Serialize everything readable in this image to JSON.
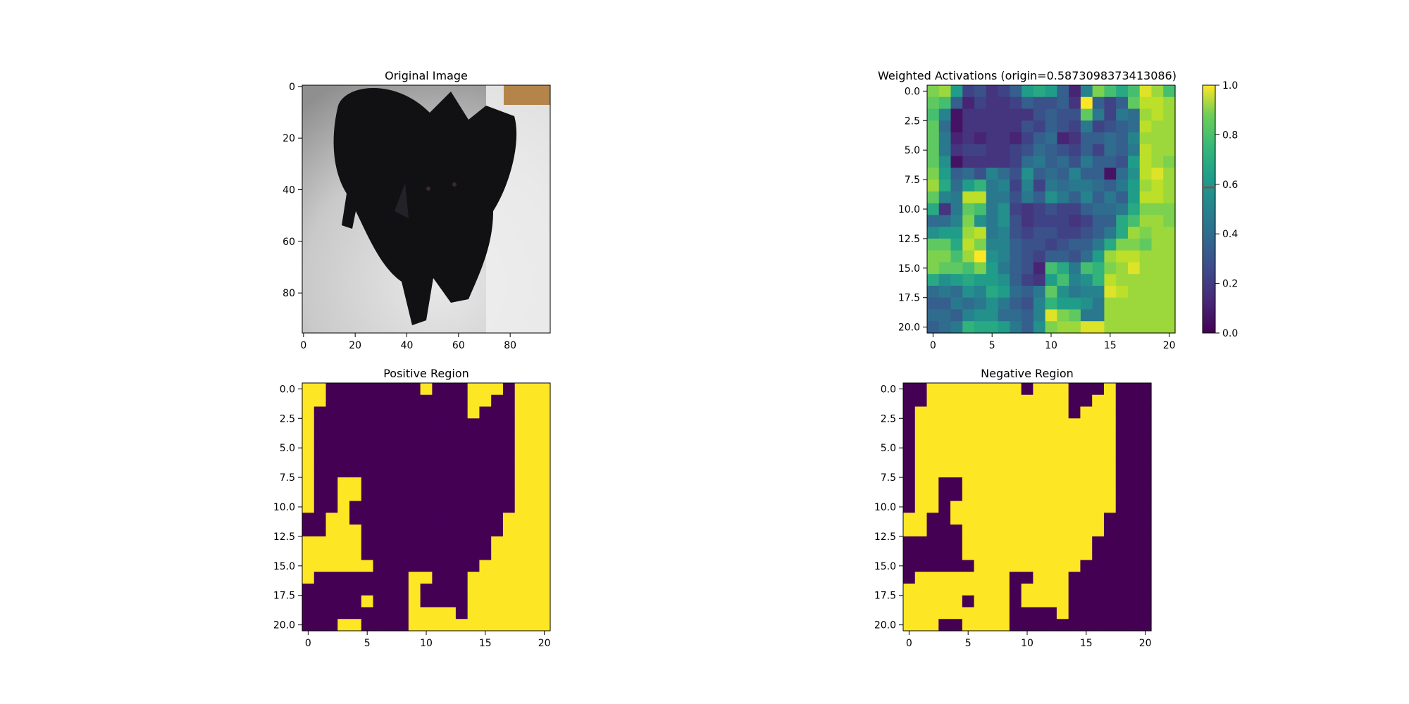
{
  "figure": {
    "panels": [
      {
        "id": "original",
        "title": "Original Image",
        "type": "image",
        "image_content": "black cat on light carpet",
        "xticks": [
          "0",
          "20",
          "40",
          "60",
          "80"
        ],
        "yticks": [
          "0",
          "20",
          "40",
          "60",
          "80"
        ],
        "xlim": [
          -0.5,
          95.5
        ],
        "ylim": [
          -0.5,
          95.5
        ],
        "xtick_values": [
          0,
          20,
          40,
          60,
          80
        ],
        "ytick_values": [
          0,
          20,
          40,
          60,
          80
        ]
      },
      {
        "id": "weighted",
        "title": "Weighted Activations (origin=0.5873098373413086)",
        "type": "heatmap",
        "colormap": "viridis",
        "xticks": [
          "0",
          "5",
          "10",
          "15",
          "20"
        ],
        "yticks": [
          "0.0",
          "2.5",
          "5.0",
          "7.5",
          "10.0",
          "12.5",
          "15.0",
          "17.5",
          "20.0"
        ],
        "colorbar": {
          "ticks": [
            "0.0",
            "0.2",
            "0.4",
            "0.6",
            "0.8",
            "1.0"
          ],
          "tick_values": [
            0,
            0.2,
            0.4,
            0.6,
            0.8,
            1.0
          ],
          "range": [
            0,
            1
          ],
          "marker_value": 0.5873098373413086,
          "marker_color": "#d62728"
        }
      },
      {
        "id": "positive",
        "title": "Positive Region",
        "type": "heatmap",
        "colormap": "binary-viridis",
        "xticks": [
          "0",
          "5",
          "10",
          "15",
          "20"
        ],
        "yticks": [
          "0.0",
          "2.5",
          "5.0",
          "7.5",
          "10.0",
          "12.5",
          "15.0",
          "17.5",
          "20.0"
        ]
      },
      {
        "id": "negative",
        "title": "Negative Region",
        "type": "heatmap",
        "colormap": "binary-viridis",
        "xticks": [
          "0",
          "5",
          "10",
          "15",
          "20"
        ],
        "yticks": [
          "0.0",
          "2.5",
          "5.0",
          "7.5",
          "10.0",
          "12.5",
          "15.0",
          "17.5",
          "20.0"
        ]
      }
    ]
  },
  "chart_data": [
    {
      "type": "heatmap",
      "title": "Original Image",
      "xlim": [
        -0.5,
        95.5
      ],
      "ylim": [
        95.5,
        -0.5
      ]
    },
    {
      "type": "heatmap",
      "title": "Weighted Activations (origin=0.5873098373413086)",
      "colormap": "viridis",
      "range": [
        0,
        1
      ],
      "values": [
        [
          0.8,
          0.85,
          0.55,
          0.2,
          0.25,
          0.15,
          0.2,
          0.3,
          0.55,
          0.6,
          0.55,
          0.3,
          0.1,
          0.45,
          0.8,
          0.7,
          0.6,
          0.7,
          0.95,
          0.85,
          0.7
        ],
        [
          0.75,
          0.7,
          0.3,
          0.1,
          0.2,
          0.15,
          0.15,
          0.2,
          0.3,
          0.25,
          0.25,
          0.3,
          0.15,
          1.0,
          0.3,
          0.2,
          0.3,
          0.75,
          0.9,
          0.9,
          0.85
        ],
        [
          0.7,
          0.45,
          0.05,
          0.15,
          0.15,
          0.15,
          0.15,
          0.15,
          0.15,
          0.25,
          0.3,
          0.25,
          0.25,
          0.75,
          0.4,
          0.2,
          0.4,
          0.35,
          0.85,
          0.9,
          0.85
        ],
        [
          0.75,
          0.35,
          0.05,
          0.15,
          0.15,
          0.15,
          0.15,
          0.15,
          0.25,
          0.2,
          0.3,
          0.25,
          0.2,
          0.4,
          0.2,
          0.25,
          0.3,
          0.35,
          0.9,
          0.85,
          0.85
        ],
        [
          0.75,
          0.4,
          0.1,
          0.15,
          0.1,
          0.15,
          0.15,
          0.1,
          0.2,
          0.3,
          0.35,
          0.1,
          0.15,
          0.3,
          0.3,
          0.35,
          0.3,
          0.45,
          0.85,
          0.85,
          0.85
        ],
        [
          0.75,
          0.4,
          0.15,
          0.2,
          0.2,
          0.15,
          0.15,
          0.2,
          0.25,
          0.35,
          0.3,
          0.25,
          0.2,
          0.3,
          0.2,
          0.35,
          0.3,
          0.4,
          0.9,
          0.85,
          0.85
        ],
        [
          0.75,
          0.5,
          0.05,
          0.15,
          0.15,
          0.15,
          0.15,
          0.2,
          0.35,
          0.4,
          0.3,
          0.35,
          0.25,
          0.4,
          0.3,
          0.3,
          0.25,
          0.55,
          0.9,
          0.85,
          0.8
        ],
        [
          0.8,
          0.55,
          0.3,
          0.35,
          0.25,
          0.45,
          0.35,
          0.25,
          0.5,
          0.3,
          0.35,
          0.3,
          0.45,
          0.3,
          0.3,
          0.05,
          0.35,
          0.5,
          0.9,
          0.95,
          0.85
        ],
        [
          0.85,
          0.6,
          0.35,
          0.55,
          0.65,
          0.4,
          0.45,
          0.2,
          0.45,
          0.2,
          0.4,
          0.35,
          0.4,
          0.4,
          0.35,
          0.3,
          0.4,
          0.55,
          0.85,
          0.9,
          0.85
        ],
        [
          0.75,
          0.45,
          0.4,
          0.9,
          0.9,
          0.4,
          0.4,
          0.25,
          0.4,
          0.3,
          0.5,
          0.4,
          0.3,
          0.45,
          0.3,
          0.4,
          0.3,
          0.55,
          0.9,
          0.9,
          0.85
        ],
        [
          0.6,
          0.15,
          0.4,
          0.75,
          0.7,
          0.4,
          0.5,
          0.2,
          0.15,
          0.2,
          0.25,
          0.2,
          0.2,
          0.3,
          0.35,
          0.35,
          0.4,
          0.6,
          0.8,
          0.8,
          0.8
        ],
        [
          0.35,
          0.35,
          0.45,
          0.8,
          0.5,
          0.4,
          0.5,
          0.25,
          0.15,
          0.2,
          0.2,
          0.2,
          0.15,
          0.2,
          0.3,
          0.3,
          0.6,
          0.7,
          0.85,
          0.85,
          0.8
        ],
        [
          0.5,
          0.55,
          0.55,
          0.85,
          0.9,
          0.4,
          0.45,
          0.25,
          0.2,
          0.25,
          0.25,
          0.2,
          0.2,
          0.25,
          0.3,
          0.4,
          0.6,
          0.85,
          0.8,
          0.85,
          0.85
        ],
        [
          0.75,
          0.75,
          0.6,
          0.9,
          0.8,
          0.45,
          0.45,
          0.3,
          0.25,
          0.25,
          0.2,
          0.25,
          0.3,
          0.3,
          0.4,
          0.6,
          0.8,
          0.8,
          0.75,
          0.85,
          0.85
        ],
        [
          0.8,
          0.8,
          0.7,
          0.85,
          1.0,
          0.5,
          0.45,
          0.3,
          0.25,
          0.2,
          0.3,
          0.3,
          0.25,
          0.35,
          0.55,
          0.85,
          0.9,
          0.9,
          0.85,
          0.85,
          0.85
        ],
        [
          0.8,
          0.75,
          0.75,
          0.7,
          0.8,
          0.55,
          0.4,
          0.3,
          0.25,
          0.1,
          0.7,
          0.6,
          0.4,
          0.7,
          0.65,
          0.8,
          0.85,
          0.95,
          0.85,
          0.85,
          0.85
        ],
        [
          0.6,
          0.5,
          0.55,
          0.6,
          0.55,
          0.55,
          0.5,
          0.3,
          0.2,
          0.15,
          0.55,
          0.7,
          0.45,
          0.5,
          0.65,
          0.9,
          0.85,
          0.85,
          0.85,
          0.85,
          0.85
        ],
        [
          0.35,
          0.4,
          0.35,
          0.5,
          0.45,
          0.6,
          0.55,
          0.35,
          0.3,
          0.4,
          0.75,
          0.5,
          0.4,
          0.45,
          0.45,
          0.95,
          0.9,
          0.85,
          0.85,
          0.85,
          0.85
        ],
        [
          0.3,
          0.3,
          0.4,
          0.35,
          0.4,
          0.5,
          0.4,
          0.3,
          0.25,
          0.45,
          0.65,
          0.55,
          0.55,
          0.5,
          0.4,
          0.85,
          0.85,
          0.85,
          0.85,
          0.85,
          0.85
        ],
        [
          0.35,
          0.35,
          0.3,
          0.45,
          0.5,
          0.5,
          0.35,
          0.35,
          0.3,
          0.45,
          0.95,
          0.8,
          0.75,
          0.4,
          0.4,
          0.85,
          0.85,
          0.85,
          0.85,
          0.85,
          0.85
        ],
        [
          0.3,
          0.35,
          0.4,
          0.65,
          0.6,
          0.6,
          0.55,
          0.4,
          0.3,
          0.5,
          0.8,
          0.85,
          0.85,
          0.95,
          0.95,
          0.85,
          0.85,
          0.85,
          0.85,
          0.85,
          0.85
        ]
      ],
      "xlim": [
        -0.5,
        20.5
      ],
      "ylim": [
        20.5,
        -0.5
      ]
    },
    {
      "type": "heatmap",
      "title": "Positive Region",
      "colormap": "viridis",
      "values": [
        [
          1,
          1,
          0,
          0,
          0,
          0,
          0,
          0,
          0,
          0,
          1,
          0,
          0,
          0,
          1,
          1,
          1,
          0,
          1,
          1,
          1
        ],
        [
          1,
          1,
          0,
          0,
          0,
          0,
          0,
          0,
          0,
          0,
          0,
          0,
          0,
          0,
          1,
          1,
          0,
          0,
          1,
          1,
          1
        ],
        [
          1,
          0,
          0,
          0,
          0,
          0,
          0,
          0,
          0,
          0,
          0,
          0,
          0,
          0,
          1,
          0,
          0,
          0,
          1,
          1,
          1
        ],
        [
          1,
          0,
          0,
          0,
          0,
          0,
          0,
          0,
          0,
          0,
          0,
          0,
          0,
          0,
          0,
          0,
          0,
          0,
          1,
          1,
          1
        ],
        [
          1,
          0,
          0,
          0,
          0,
          0,
          0,
          0,
          0,
          0,
          0,
          0,
          0,
          0,
          0,
          0,
          0,
          0,
          1,
          1,
          1
        ],
        [
          1,
          0,
          0,
          0,
          0,
          0,
          0,
          0,
          0,
          0,
          0,
          0,
          0,
          0,
          0,
          0,
          0,
          0,
          1,
          1,
          1
        ],
        [
          1,
          0,
          0,
          0,
          0,
          0,
          0,
          0,
          0,
          0,
          0,
          0,
          0,
          0,
          0,
          0,
          0,
          0,
          1,
          1,
          1
        ],
        [
          1,
          0,
          0,
          0,
          0,
          0,
          0,
          0,
          0,
          0,
          0,
          0,
          0,
          0,
          0,
          0,
          0,
          0,
          1,
          1,
          1
        ],
        [
          1,
          0,
          0,
          1,
          1,
          0,
          0,
          0,
          0,
          0,
          0,
          0,
          0,
          0,
          0,
          0,
          0,
          0,
          1,
          1,
          1
        ],
        [
          1,
          0,
          0,
          1,
          1,
          0,
          0,
          0,
          0,
          0,
          0,
          0,
          0,
          0,
          0,
          0,
          0,
          0,
          1,
          1,
          1
        ],
        [
          1,
          0,
          0,
          1,
          0,
          0,
          0,
          0,
          0,
          0,
          0,
          0,
          0,
          0,
          0,
          0,
          0,
          0,
          1,
          1,
          1
        ],
        [
          0,
          0,
          1,
          1,
          0,
          0,
          0,
          0,
          0,
          0,
          0,
          0,
          0,
          0,
          0,
          0,
          0,
          1,
          1,
          1,
          1
        ],
        [
          0,
          0,
          1,
          1,
          1,
          0,
          0,
          0,
          0,
          0,
          0,
          0,
          0,
          0,
          0,
          0,
          0,
          1,
          1,
          1,
          1
        ],
        [
          1,
          1,
          1,
          1,
          1,
          0,
          0,
          0,
          0,
          0,
          0,
          0,
          0,
          0,
          0,
          0,
          1,
          1,
          1,
          1,
          1
        ],
        [
          1,
          1,
          1,
          1,
          1,
          0,
          0,
          0,
          0,
          0,
          0,
          0,
          0,
          0,
          0,
          0,
          1,
          1,
          1,
          1,
          1
        ],
        [
          1,
          1,
          1,
          1,
          1,
          1,
          0,
          0,
          0,
          0,
          0,
          0,
          0,
          0,
          0,
          1,
          1,
          1,
          1,
          1,
          1
        ],
        [
          1,
          0,
          0,
          0,
          0,
          0,
          0,
          0,
          0,
          1,
          1,
          0,
          0,
          0,
          1,
          1,
          1,
          1,
          1,
          1,
          1
        ],
        [
          0,
          0,
          0,
          0,
          0,
          0,
          0,
          0,
          0,
          1,
          0,
          0,
          0,
          0,
          1,
          1,
          1,
          1,
          1,
          1,
          1
        ],
        [
          0,
          0,
          0,
          0,
          0,
          1,
          0,
          0,
          0,
          1,
          0,
          0,
          0,
          0,
          1,
          1,
          1,
          1,
          1,
          1,
          1
        ],
        [
          0,
          0,
          0,
          0,
          0,
          0,
          0,
          0,
          0,
          1,
          1,
          1,
          1,
          0,
          1,
          1,
          1,
          1,
          1,
          1,
          1
        ],
        [
          0,
          0,
          0,
          1,
          1,
          0,
          0,
          0,
          0,
          1,
          1,
          1,
          1,
          1,
          1,
          1,
          1,
          1,
          1,
          1,
          1
        ]
      ],
      "xlim": [
        -0.5,
        20.5
      ],
      "ylim": [
        20.5,
        -0.5
      ]
    },
    {
      "type": "heatmap",
      "title": "Negative Region",
      "colormap": "viridis",
      "note_inverse_of": "Positive Region",
      "xlim": [
        -0.5,
        20.5
      ],
      "ylim": [
        20.5,
        -0.5
      ]
    }
  ]
}
